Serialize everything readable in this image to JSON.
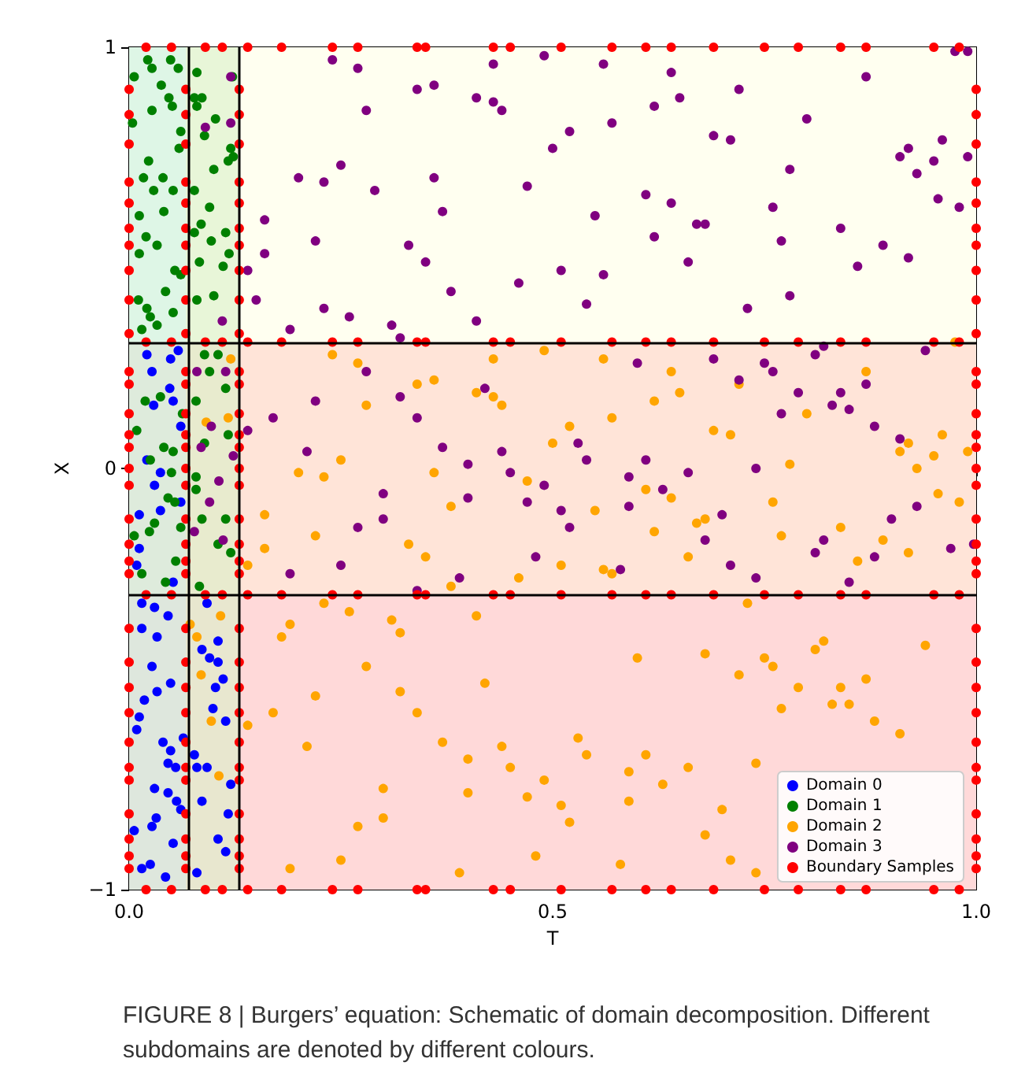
{
  "chart_data": {
    "type": "scatter",
    "xlabel": "T",
    "ylabel": "X",
    "xlim": [
      0,
      1
    ],
    "ylim": [
      -1,
      1
    ],
    "xticks": [
      {
        "value": 0,
        "label": "0.0"
      },
      {
        "value": 0.5,
        "label": "0.5"
      },
      {
        "value": 1,
        "label": "1.0"
      }
    ],
    "yticks": [
      {
        "value": -1,
        "label": "−1"
      },
      0,
      1
    ],
    "marker": "circle",
    "legend": "bottom right",
    "annotations": [
      "FIGURE 8 | Burgers’ equation: Schematic of domain decomposition. Different subdomains are denoted by different colours."
    ],
    "bands": [
      {
        "axis": "y",
        "from": 0.3,
        "to": 1,
        "color": "#fffff0"
      },
      {
        "axis": "y",
        "from": -0.3,
        "to": 0.3,
        "color": "#ffe4d8"
      },
      {
        "axis": "y",
        "from": -1,
        "to": -0.3,
        "color": "#ffd9d9"
      },
      {
        "axis": "x",
        "from": 0,
        "to": 0.067,
        "color": "#c8f0e0"
      },
      {
        "axis": "x",
        "from": 0.067,
        "to": 0.13,
        "color": "#d8f0c8"
      }
    ],
    "ref_lines": [
      {
        "axis": "x",
        "value": 0.067,
        "color": "#000000"
      },
      {
        "axis": "x",
        "value": 0.13,
        "color": "#000000"
      },
      {
        "axis": "y",
        "value": 0.3,
        "color": "#000000"
      },
      {
        "axis": "y",
        "value": -0.3,
        "color": "#000000"
      }
    ],
    "series": [
      {
        "name": "Domain 0",
        "color": "#0000ff",
        "x": [
          0.021,
          0.049,
          0.058,
          0.027,
          0.048,
          0.052,
          0.029,
          0.061,
          0.021,
          0.037,
          0.03,
          0.012,
          0.037,
          0.012,
          0.009,
          0.052,
          0.061,
          0.015,
          0.03,
          0.046,
          0.015,
          0.033,
          0.027,
          0.049,
          0.033,
          0.018,
          0.012,
          0.009,
          0.04,
          0.064,
          0.049,
          0.046,
          0.055,
          0.03,
          0.046,
          0.056,
          0.032,
          0.027,
          0.006,
          0.061,
          0.052,
          0.015,
          0.043,
          0.025,
          0.092,
          0.086,
          0.105,
          0.095,
          0.105,
          0.111,
          0.102,
          0.099,
          0.114,
          0.077,
          0.08,
          0.092,
          0.12,
          0.086,
          0.117,
          0.105,
          0.114,
          0.08
        ],
        "values": [
          0.27,
          0.26,
          0.28,
          0.23,
          0.19,
          0.16,
          0.15,
          0.1,
          0.02,
          -0.01,
          -0.04,
          -0.11,
          -0.1,
          -0.19,
          -0.23,
          -0.27,
          -0.08,
          -0.32,
          -0.33,
          -0.35,
          -0.38,
          -0.4,
          -0.47,
          -0.51,
          -0.53,
          -0.55,
          -0.59,
          -0.62,
          -0.65,
          -0.64,
          -0.67,
          -0.7,
          -0.71,
          -0.76,
          -0.77,
          -0.79,
          -0.83,
          -0.85,
          -0.86,
          -0.81,
          -0.89,
          -0.95,
          -0.97,
          -0.94,
          -0.32,
          -0.43,
          -0.41,
          -0.45,
          -0.46,
          -0.5,
          -0.52,
          -0.57,
          -0.6,
          -0.68,
          -0.71,
          -0.71,
          -0.75,
          -0.79,
          -0.82,
          -0.88,
          -0.91,
          -0.96
        ]
      },
      {
        "name": "Domain 1",
        "color": "#008000",
        "x": [
          0.022,
          0.049,
          0.027,
          0.058,
          0.006,
          0.038,
          0.047,
          0.051,
          0.027,
          0.004,
          0.061,
          0.059,
          0.023,
          0.017,
          0.04,
          0.029,
          0.052,
          0.041,
          0.012,
          0.02,
          0.033,
          0.012,
          0.054,
          0.061,
          0.043,
          0.011,
          0.021,
          0.025,
          0.052,
          0.015,
          0.033,
          0.08,
          0.122,
          0.077,
          0.086,
          0.08,
          0.102,
          0.089,
          0.12,
          0.123,
          0.117,
          0.1,
          0.077,
          0.095,
          0.085,
          0.077,
          0.097,
          0.114,
          0.118,
          0.083,
          0.111,
          0.1,
          0.08,
          0.019,
          0.037,
          0.009,
          0.041,
          0.052,
          0.025,
          0.063,
          0.05,
          0.046,
          0.03,
          0.024,
          0.006,
          0.054,
          0.061,
          0.055,
          0.015,
          0.043,
          0.089,
          0.105,
          0.095,
          0.079,
          0.114,
          0.117,
          0.089,
          0.079,
          0.079,
          0.086,
          0.114,
          0.105,
          0.12,
          0.083
        ],
        "values": [
          0.97,
          0.97,
          0.95,
          0.95,
          0.93,
          0.91,
          0.88,
          0.86,
          0.85,
          0.82,
          0.8,
          0.76,
          0.73,
          0.69,
          0.69,
          0.66,
          0.66,
          0.61,
          0.6,
          0.55,
          0.53,
          0.51,
          0.47,
          0.46,
          0.42,
          0.4,
          0.38,
          0.36,
          0.37,
          0.33,
          0.34,
          0.94,
          0.93,
          0.88,
          0.88,
          0.86,
          0.83,
          0.79,
          0.76,
          0.74,
          0.73,
          0.71,
          0.66,
          0.62,
          0.58,
          0.56,
          0.54,
          0.56,
          0.51,
          0.49,
          0.48,
          0.41,
          0.4,
          0.16,
          0.17,
          0.09,
          0.05,
          0.04,
          0.02,
          0.13,
          -0.01,
          -0.07,
          -0.13,
          -0.15,
          -0.16,
          -0.08,
          -0.14,
          -0.22,
          -0.25,
          -0.27,
          0.27,
          0.27,
          0.23,
          0.16,
          0.19,
          0.08,
          0.06,
          -0.02,
          -0.05,
          -0.12,
          -0.12,
          -0.18,
          -0.2,
          -0.28
        ]
      },
      {
        "name": "Domain 2",
        "color": "#ffa500",
        "x": [
          0.24,
          0.27,
          0.43,
          0.49,
          0.56,
          0.34,
          0.36,
          0.41,
          0.43,
          0.44,
          0.28,
          0.57,
          0.52,
          0.5,
          0.25,
          0.2,
          0.23,
          0.36,
          0.47,
          0.16,
          0.38,
          0.55,
          0.22,
          0.16,
          0.33,
          0.35,
          0.14,
          0.51,
          0.46,
          0.56,
          0.38,
          0.23,
          0.26,
          0.31,
          0.19,
          0.32,
          0.18,
          0.41,
          0.28,
          0.42,
          0.22,
          0.32,
          0.17,
          0.34,
          0.14,
          0.21,
          0.37,
          0.4,
          0.44,
          0.45,
          0.53,
          0.54,
          0.49,
          0.47,
          0.4,
          0.3,
          0.51,
          0.52,
          0.3,
          0.27,
          0.48,
          0.25,
          0.19,
          0.39,
          0.64,
          0.72,
          0.65,
          0.62,
          0.8,
          0.87,
          0.69,
          0.71,
          0.96,
          0.92,
          0.91,
          0.95,
          0.99,
          0.93,
          0.78,
          0.975,
          0.61,
          0.64,
          0.76,
          0.955,
          0.98,
          0.67,
          0.68,
          0.62,
          0.77,
          0.84,
          0.89,
          0.92,
          0.86,
          0.66,
          0.57,
          0.73,
          0.6,
          0.68,
          0.75,
          0.76,
          0.72,
          0.81,
          0.82,
          0.94,
          0.87,
          0.84,
          0.79,
          0.83,
          0.85,
          0.77,
          0.88,
          0.91,
          0.61,
          0.66,
          0.74,
          0.59,
          0.63,
          0.59,
          0.7,
          0.68,
          0.71,
          0.74,
          0.58,
          0.108,
          0.08,
          0.085,
          0.097,
          0.106,
          0.072,
          0.12,
          0.117,
          0.091
        ],
        "values": [
          0.27,
          0.25,
          0.26,
          0.28,
          0.26,
          0.2,
          0.21,
          0.18,
          0.17,
          0.15,
          0.15,
          0.12,
          0.1,
          0.06,
          0.02,
          -0.01,
          -0.02,
          -0.01,
          -0.03,
          -0.11,
          -0.09,
          -0.1,
          -0.16,
          -0.19,
          -0.18,
          -0.21,
          -0.23,
          -0.23,
          -0.26,
          -0.24,
          -0.28,
          -0.32,
          -0.34,
          -0.36,
          -0.37,
          -0.39,
          -0.4,
          -0.35,
          -0.47,
          -0.51,
          -0.54,
          -0.53,
          -0.58,
          -0.58,
          -0.61,
          -0.66,
          -0.65,
          -0.69,
          -0.66,
          -0.71,
          -0.64,
          -0.68,
          -0.74,
          -0.78,
          -0.77,
          -0.76,
          -0.8,
          -0.84,
          -0.83,
          -0.85,
          -0.92,
          -0.93,
          -0.95,
          -0.96,
          0.23,
          0.2,
          0.18,
          0.16,
          0.13,
          0.23,
          0.09,
          0.08,
          0.08,
          0.06,
          0.04,
          0.03,
          0.04,
          0.0,
          0.01,
          0.3,
          -0.05,
          -0.07,
          -0.08,
          -0.06,
          -0.08,
          -0.13,
          -0.12,
          -0.15,
          -0.16,
          -0.14,
          -0.17,
          -0.2,
          -0.22,
          -0.21,
          -0.25,
          -0.32,
          -0.45,
          -0.44,
          -0.45,
          -0.47,
          -0.49,
          -0.43,
          -0.41,
          -0.42,
          -0.5,
          -0.52,
          -0.52,
          -0.56,
          -0.56,
          -0.57,
          -0.6,
          -0.63,
          -0.68,
          -0.71,
          -0.7,
          -0.72,
          -0.75,
          -0.79,
          -0.81,
          -0.87,
          -0.93,
          -0.96,
          -0.94,
          -0.35,
          -0.4,
          -0.49,
          -0.6,
          -0.73,
          -0.37,
          0.26,
          0.12,
          0.11
        ]
      },
      {
        "name": "Domain 3",
        "color": "#800080",
        "x": [
          0.24,
          0.27,
          0.43,
          0.49,
          0.56,
          0.34,
          0.36,
          0.41,
          0.43,
          0.44,
          0.28,
          0.57,
          0.52,
          0.5,
          0.25,
          0.2,
          0.23,
          0.36,
          0.29,
          0.47,
          0.16,
          0.37,
          0.55,
          0.22,
          0.16,
          0.33,
          0.35,
          0.14,
          0.51,
          0.46,
          0.56,
          0.38,
          0.15,
          0.23,
          0.26,
          0.41,
          0.54,
          0.31,
          0.19,
          0.32,
          0.28,
          0.22,
          0.32,
          0.42,
          0.17,
          0.34,
          0.14,
          0.37,
          0.21,
          0.53,
          0.54,
          0.44,
          0.4,
          0.45,
          0.49,
          0.3,
          0.4,
          0.47,
          0.51,
          0.3,
          0.27,
          0.52,
          0.48,
          0.25,
          0.19,
          0.39,
          0.34,
          0.64,
          0.62,
          0.65,
          0.72,
          0.87,
          0.8,
          0.69,
          0.71,
          0.975,
          0.99,
          0.96,
          0.92,
          0.91,
          0.95,
          0.99,
          0.93,
          0.78,
          0.61,
          0.64,
          0.76,
          0.955,
          0.98,
          0.67,
          0.68,
          0.62,
          0.77,
          0.84,
          0.89,
          0.92,
          0.86,
          0.66,
          0.78,
          0.73,
          0.82,
          0.81,
          0.94,
          0.6,
          0.69,
          0.75,
          0.76,
          0.72,
          0.87,
          0.84,
          0.79,
          0.77,
          0.83,
          0.85,
          0.88,
          0.91,
          0.61,
          0.66,
          0.74,
          0.59,
          0.63,
          0.59,
          0.7,
          0.68,
          0.82,
          0.81,
          0.9,
          0.93,
          0.97,
          0.997,
          0.88,
          0.71,
          0.74,
          0.58,
          0.85,
          0.12,
          0.12,
          0.09,
          0.11,
          0.08,
          0.114,
          0.097,
          0.085,
          0.123,
          0.095,
          0.077,
          0.111,
          0.106
        ],
        "values": [
          0.97,
          0.95,
          0.96,
          0.98,
          0.96,
          0.9,
          0.91,
          0.88,
          0.87,
          0.85,
          0.85,
          0.82,
          0.8,
          0.76,
          0.72,
          0.69,
          0.68,
          0.69,
          0.66,
          0.67,
          0.59,
          0.61,
          0.6,
          0.54,
          0.51,
          0.53,
          0.49,
          0.47,
          0.47,
          0.44,
          0.46,
          0.42,
          0.4,
          0.38,
          0.36,
          0.35,
          0.39,
          0.34,
          0.33,
          0.31,
          0.23,
          0.16,
          0.17,
          0.19,
          0.12,
          0.12,
          0.09,
          0.05,
          0.04,
          0.06,
          0.02,
          0.04,
          0.01,
          -0.01,
          -0.04,
          -0.06,
          -0.07,
          -0.08,
          -0.1,
          -0.12,
          -0.14,
          -0.14,
          -0.21,
          -0.23,
          -0.25,
          -0.26,
          -0.29,
          0.94,
          0.86,
          0.88,
          0.9,
          0.93,
          0.83,
          0.79,
          0.78,
          0.99,
          0.99,
          0.78,
          0.76,
          0.74,
          0.73,
          0.74,
          0.7,
          0.71,
          0.65,
          0.63,
          0.62,
          0.64,
          0.62,
          0.58,
          0.58,
          0.55,
          0.54,
          0.57,
          0.53,
          0.5,
          0.48,
          0.49,
          0.41,
          0.38,
          0.29,
          0.27,
          0.28,
          0.25,
          0.26,
          0.25,
          0.23,
          0.21,
          0.2,
          0.18,
          0.18,
          0.13,
          0.15,
          0.14,
          0.1,
          0.07,
          0.02,
          -0.01,
          0.0,
          -0.02,
          -0.05,
          -0.09,
          -0.11,
          -0.17,
          -0.17,
          -0.2,
          -0.12,
          -0.09,
          -0.19,
          -0.18,
          -0.21,
          -0.23,
          -0.26,
          -0.24,
          -0.27,
          0.93,
          0.82,
          0.81,
          0.35,
          0.23,
          0.23,
          0.1,
          0.05,
          0.03,
          -0.08,
          -0.15,
          -0.17,
          -0.03
        ]
      },
      {
        "name": "Boundary Samples",
        "color": "#ff0000",
        "x": [
          0.02,
          0.05,
          0.09,
          0.11,
          0.14,
          0.18,
          0.24,
          0.27,
          0.34,
          0.35,
          0.43,
          0.45,
          0.51,
          0.57,
          0.61,
          0.64,
          0.69,
          0.75,
          0.79,
          0.84,
          0.87,
          0.95,
          0.98,
          0.02,
          0.05,
          0.09,
          0.11,
          0.14,
          0.18,
          0.24,
          0.27,
          0.34,
          0.35,
          0.43,
          0.45,
          0.51,
          0.57,
          0.61,
          0.64,
          0.69,
          0.75,
          0.79,
          0.84,
          0.87,
          0.95,
          0.98,
          0.02,
          0.05,
          0.09,
          0.11,
          0.14,
          0.18,
          0.24,
          0.27,
          0.34,
          0.35,
          0.43,
          0.45,
          0.51,
          0.57,
          0.61,
          0.64,
          0.69,
          0.75,
          0.79,
          0.84,
          0.87,
          0.95,
          0.98,
          0.02,
          0.05,
          0.09,
          0.11,
          0.14,
          0.18,
          0.24,
          0.27,
          0.34,
          0.35,
          0.43,
          0.45,
          0.51,
          0.57,
          0.61,
          0.64,
          0.69,
          0.75,
          0.79,
          0.84,
          0.87,
          0.95,
          0.98,
          0,
          0,
          0,
          0,
          0,
          0,
          0,
          0,
          0,
          0,
          0,
          0,
          0,
          0,
          0,
          0,
          0,
          0,
          0,
          0,
          0,
          0,
          0,
          0,
          0,
          0,
          0,
          0,
          0,
          0,
          0,
          0,
          0.067,
          0.067,
          0.067,
          0.067,
          0.067,
          0.067,
          0.067,
          0.067,
          0.067,
          0.067,
          0.067,
          0.067,
          0.067,
          0.067,
          0.067,
          0.067,
          0.067,
          0.067,
          0.067,
          0.067,
          0.067,
          0.067,
          0.067,
          0.067,
          0.067,
          0.067,
          0.067,
          0.067,
          0.067,
          0.067,
          0.067,
          0.067,
          0.13,
          0.13,
          0.13,
          0.13,
          0.13,
          0.13,
          0.13,
          0.13,
          0.13,
          0.13,
          0.13,
          0.13,
          0.13,
          0.13,
          0.13,
          0.13,
          0.13,
          0.13,
          0.13,
          0.13,
          0.13,
          0.13,
          0.13,
          0.13,
          0.13,
          0.13,
          0.13,
          0.13,
          0.13,
          0.13,
          0.13,
          0.13,
          1,
          1,
          1,
          1,
          1,
          1,
          1,
          1,
          1,
          1,
          1,
          1,
          1,
          1,
          1,
          1,
          1,
          1,
          1,
          1,
          1,
          1,
          1,
          1,
          1,
          1,
          1,
          1,
          1,
          1,
          1,
          1
        ],
        "values": [
          1,
          1,
          1,
          1,
          1,
          1,
          1,
          1,
          1,
          1,
          1,
          1,
          1,
          1,
          1,
          1,
          1,
          1,
          1,
          1,
          1,
          1,
          1,
          0.3,
          0.3,
          0.3,
          0.3,
          0.3,
          0.3,
          0.3,
          0.3,
          0.3,
          0.3,
          0.3,
          0.3,
          0.3,
          0.3,
          0.3,
          0.3,
          0.3,
          0.3,
          0.3,
          0.3,
          0.3,
          0.3,
          0.3,
          -0.3,
          -0.3,
          -0.3,
          -0.3,
          -0.3,
          -0.3,
          -0.3,
          -0.3,
          -0.3,
          -0.3,
          -0.3,
          -0.3,
          -0.3,
          -0.3,
          -0.3,
          -0.3,
          -0.3,
          -0.3,
          -0.3,
          -0.3,
          -0.3,
          -0.3,
          -0.3,
          -1,
          -1,
          -1,
          -1,
          -1,
          -1,
          -1,
          -1,
          -1,
          -1,
          -1,
          -1,
          -1,
          -1,
          -1,
          -1,
          -1,
          -1,
          -1,
          -1,
          -1,
          -1,
          -1,
          0.9,
          0.84,
          0.77,
          0.68,
          0.63,
          0.57,
          0.53,
          0.47,
          0.4,
          0.32,
          0.23,
          0.2,
          0.13,
          0.08,
          0.05,
          0,
          -0.04,
          -0.12,
          -0.18,
          -0.22,
          -0.25,
          -0.38,
          -0.46,
          -0.52,
          -0.58,
          -0.65,
          -0.71,
          -0.74,
          -0.82,
          -0.88,
          -0.92,
          -0.95,
          0.9,
          0.84,
          0.77,
          0.68,
          0.63,
          0.57,
          0.53,
          0.47,
          0.4,
          0.32,
          0.23,
          0.2,
          0.13,
          0.08,
          0.05,
          0,
          -0.04,
          -0.12,
          -0.18,
          -0.22,
          -0.25,
          -0.38,
          -0.46,
          -0.52,
          -0.58,
          -0.65,
          -0.71,
          -0.74,
          -0.82,
          -0.88,
          -0.92,
          -0.95,
          0.9,
          0.84,
          0.77,
          0.68,
          0.63,
          0.57,
          0.53,
          0.47,
          0.4,
          0.32,
          0.23,
          0.2,
          0.13,
          0.08,
          0.05,
          0,
          -0.04,
          -0.12,
          -0.18,
          -0.22,
          -0.25,
          -0.38,
          -0.46,
          -0.52,
          -0.58,
          -0.65,
          -0.71,
          -0.74,
          -0.82,
          -0.88,
          -0.92,
          -0.95,
          0.9,
          0.84,
          0.77,
          0.68,
          0.63,
          0.57,
          0.53,
          0.47,
          0.4,
          0.32,
          0.23,
          0.2,
          0.13,
          0.08,
          0.05,
          0,
          -0.04,
          -0.12,
          -0.18,
          -0.22,
          -0.25,
          -0.38,
          -0.46,
          -0.52,
          -0.58,
          -0.65,
          -0.71,
          -0.74,
          -0.82,
          -0.88,
          -0.92,
          -0.95
        ]
      }
    ]
  }
}
